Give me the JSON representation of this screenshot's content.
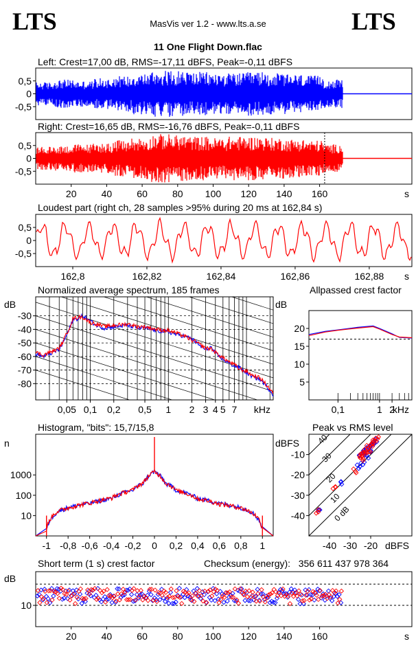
{
  "header": {
    "logo_left": "LTS",
    "logo_right": "LTS",
    "app_title": "MasVis ver 1.2 - www.lts.a.se",
    "file_title": "11 One Flight Down.flac"
  },
  "colors": {
    "left": "#0000ff",
    "right": "#ff0000",
    "grid": "#000000",
    "background": "#ffffff"
  },
  "chart_data": [
    {
      "id": "left-waveform",
      "type": "line",
      "title": "Left: Crest=17,00 dB, RMS=-17,11 dBFS, Peak=-0,11 dBFS",
      "yticks": [
        "0,5",
        "0",
        "-0,5"
      ],
      "ytick_values": [
        0.5,
        0,
        -0.5
      ],
      "ylim": [
        -1,
        1
      ],
      "xlim": [
        0,
        212
      ],
      "end_seconds": 173,
      "series": [
        {
          "values": [
            0.45,
            0.55,
            0.5,
            0.6,
            0.7,
            0.8,
            0.9,
            0.9,
            0.85,
            0.8,
            0.8,
            0.85,
            0.8,
            0.75,
            0.7,
            0.55
          ]
        }
      ]
    },
    {
      "id": "right-waveform",
      "type": "line",
      "title": "Right: Crest=16,65 dB, RMS=-16,76 dBFS, Peak=-0,11 dBFS",
      "yticks": [
        "0,5",
        "0",
        "-0,5"
      ],
      "ytick_values": [
        0.5,
        0,
        -0.5
      ],
      "ylim": [
        -1,
        1
      ],
      "xlim": [
        0,
        212
      ],
      "xticks": [
        "20",
        "40",
        "60",
        "80",
        "100",
        "120",
        "140",
        "160"
      ],
      "xtick_values": [
        20,
        40,
        60,
        80,
        100,
        120,
        140,
        160
      ],
      "xunit": "s",
      "marker_x": 162.84,
      "end_seconds": 173,
      "series": [
        {
          "values": [
            0.45,
            0.5,
            0.55,
            0.6,
            0.7,
            0.8,
            0.95,
            0.9,
            0.85,
            0.8,
            0.85,
            0.85,
            0.8,
            0.75,
            0.7,
            0.55
          ]
        }
      ]
    },
    {
      "id": "loudest-part",
      "type": "line",
      "title": "Loudest part (right ch, 28 samples >95% during 20 ms at 162,84 s)",
      "yticks": [
        "0,5",
        "0",
        "-0,5"
      ],
      "ytick_values": [
        0.5,
        0,
        -0.5
      ],
      "ylim": [
        -1,
        1
      ],
      "xlim": [
        162.79,
        162.8915
      ],
      "xticks": [
        "162,8",
        "162,82",
        "162,84",
        "162,86",
        "162,88"
      ],
      "xtick_values": [
        162.8,
        162.82,
        162.84,
        162.86,
        162.88
      ],
      "xunit": "s"
    },
    {
      "id": "avg-spectrum",
      "type": "line",
      "title": "Normalized average spectrum, 185 frames",
      "ylabel": "dB",
      "yticks": [
        "-30",
        "-40",
        "-50",
        "-60",
        "-70",
        "-80"
      ],
      "ytick_values": [
        -30,
        -40,
        -50,
        -60,
        -70,
        -80
      ],
      "ylim": [
        -92,
        -16
      ],
      "xscale": "log",
      "xlim": [
        0.02,
        22
      ],
      "xticks": [
        "0,05",
        "0,1",
        "0,2",
        "0,5",
        "1",
        "2",
        "3",
        "4",
        "5",
        "7"
      ],
      "xtick_values": [
        0.05,
        0.1,
        0.2,
        0.5,
        1,
        2,
        3,
        4,
        5,
        7
      ],
      "xunit": "kHz",
      "series": [
        {
          "x": [
            0.02,
            0.025,
            0.03,
            0.04,
            0.05,
            0.06,
            0.07,
            0.08,
            0.1,
            0.12,
            0.15,
            0.2,
            0.3,
            0.4,
            0.5,
            0.7,
            1,
            1.3,
            1.6,
            2,
            2.5,
            3,
            3.5,
            4,
            5,
            6,
            7,
            8,
            10,
            12,
            15,
            18,
            22
          ],
          "y": [
            -58,
            -60,
            -58,
            -55,
            -44,
            -33,
            -32,
            -30,
            -34,
            -37,
            -39,
            -38,
            -37,
            -39,
            -39,
            -41,
            -42,
            -44,
            -45,
            -47,
            -52,
            -55,
            -53,
            -58,
            -62,
            -65,
            -67,
            -68,
            -72,
            -75,
            -77,
            -82,
            -88
          ]
        },
        {
          "x": [
            0.02,
            0.025,
            0.03,
            0.04,
            0.05,
            0.06,
            0.07,
            0.08,
            0.1,
            0.12,
            0.15,
            0.2,
            0.3,
            0.4,
            0.5,
            0.7,
            1,
            1.3,
            1.6,
            2,
            2.5,
            3,
            3.5,
            4,
            5,
            6,
            7,
            8,
            10,
            12,
            15,
            18,
            22
          ],
          "y": [
            -57,
            -59,
            -57,
            -54,
            -43,
            -32,
            -31,
            -31,
            -35,
            -36,
            -38,
            -37,
            -36,
            -38,
            -38,
            -40,
            -41,
            -43,
            -45,
            -48,
            -51,
            -54,
            -54,
            -57,
            -61,
            -64,
            -66,
            -69,
            -71,
            -74,
            -76,
            -81,
            -87
          ]
        }
      ]
    },
    {
      "id": "allpassed-crest",
      "type": "line",
      "title": "Allpassed crest factor",
      "ylabel": "dB",
      "yticks": [
        "20",
        "15",
        "10",
        "5"
      ],
      "ytick_values": [
        20,
        15,
        10,
        5
      ],
      "ylim": [
        0,
        25
      ],
      "xscale": "log",
      "xlim": [
        0.02,
        6
      ],
      "xticks": [
        "0,1",
        "1",
        "2"
      ],
      "xtick_values": [
        0.1,
        1,
        2
      ],
      "xunit": "kHz",
      "reference_y": 17,
      "series": [
        {
          "x": [
            0.02,
            0.05,
            0.1,
            0.3,
            0.7,
            1,
            2,
            3,
            6
          ],
          "y": [
            18.3,
            19.2,
            19.6,
            20.3,
            20.7,
            20.0,
            18.5,
            17.5,
            17.3
          ]
        },
        {
          "x": [
            0.02,
            0.05,
            0.1,
            0.3,
            0.7,
            1,
            2,
            3,
            6
          ],
          "y": [
            18.0,
            19.0,
            19.5,
            20.1,
            20.5,
            19.8,
            18.3,
            17.6,
            17.4
          ]
        }
      ]
    },
    {
      "id": "histogram",
      "type": "line",
      "title": "Histogram, \"bits\": 15,7/15,8",
      "ylabel": "n",
      "yscale": "log",
      "yticks": [
        "1000",
        "100",
        "10"
      ],
      "ytick_values": [
        1000,
        100,
        10
      ],
      "ylim": [
        1,
        100000
      ],
      "xlim": [
        -1.1,
        1.1
      ],
      "xticks": [
        "-1",
        "-0,8",
        "-0,6",
        "-0,4",
        "-0,2",
        "0",
        "0,2",
        "0,4",
        "0,6",
        "0,8",
        "1"
      ],
      "xtick_values": [
        -1,
        -0.8,
        -0.6,
        -0.4,
        -0.2,
        0,
        0.2,
        0.4,
        0.6,
        0.8,
        1
      ],
      "series": [
        {
          "x": [
            -1,
            -0.95,
            -0.9,
            -0.8,
            -0.6,
            -0.4,
            -0.2,
            -0.1,
            0,
            0.1,
            0.2,
            0.4,
            0.6,
            0.8,
            0.9,
            0.95,
            1
          ],
          "y": [
            2,
            8,
            15,
            25,
            40,
            70,
            180,
            400,
            1500,
            400,
            180,
            70,
            40,
            25,
            15,
            8,
            2
          ]
        },
        {
          "x": [
            -1,
            -0.95,
            -0.9,
            -0.8,
            -0.6,
            -0.4,
            -0.2,
            -0.1,
            0,
            0.1,
            0.2,
            0.4,
            0.6,
            0.8,
            0.9,
            0.95,
            1
          ],
          "y": [
            2,
            9,
            16,
            24,
            42,
            72,
            185,
            420,
            1450,
            410,
            175,
            68,
            38,
            24,
            14,
            9,
            2
          ]
        }
      ]
    },
    {
      "id": "peak-vs-rms",
      "type": "scatter",
      "title": "Peak vs RMS level",
      "ylabel": "dBFS",
      "yticks": [
        "-10",
        "-20",
        "-30",
        "-40"
      ],
      "ytick_values": [
        -10,
        -20,
        -30,
        -40
      ],
      "ylim": [
        -50,
        0
      ],
      "xlim": [
        -50,
        0
      ],
      "xticks": [
        "-40",
        "-30",
        "-20"
      ],
      "xtick_values": [
        -40,
        -30,
        -20
      ],
      "xunit": "dBFS",
      "diagonal_labels": [
        "40",
        "30",
        "20",
        "10",
        "0 dB"
      ],
      "series": [
        {
          "x": [
            -25,
            -24,
            -23,
            -22,
            -21,
            -20,
            -19,
            -18,
            -20,
            -22,
            -24,
            -26,
            -35,
            -45
          ],
          "y": [
            -10,
            -9,
            -8,
            -7,
            -6,
            -5,
            -4,
            -3,
            -8,
            -11,
            -14,
            -16,
            -24,
            -37
          ]
        },
        {
          "x": [
            -25,
            -24,
            -23,
            -22,
            -21,
            -20,
            -19,
            -18,
            -17,
            -21,
            -23,
            -28,
            -38,
            -46
          ],
          "y": [
            -11,
            -10,
            -9,
            -8,
            -6,
            -5,
            -4,
            -3,
            -2,
            -9,
            -12,
            -18,
            -26,
            -38
          ]
        }
      ]
    },
    {
      "id": "short-term-crest",
      "type": "scatter",
      "title": "Short term (1 s) crest factor",
      "checksum": "Checksum (energy):   356 611 437 978 364",
      "ylabel": "dB",
      "yticks": [
        "10"
      ],
      "ytick_values": [
        10
      ],
      "yscale": "log",
      "ylim": [
        5,
        30
      ],
      "reference_lines": [
        10,
        20
      ],
      "xlim": [
        0,
        212
      ],
      "xticks": [
        "20",
        "40",
        "60",
        "80",
        "100",
        "120",
        "140",
        "160"
      ],
      "xtick_values": [
        20,
        40,
        60,
        80,
        100,
        120,
        140,
        160
      ],
      "xunit": "s"
    }
  ]
}
